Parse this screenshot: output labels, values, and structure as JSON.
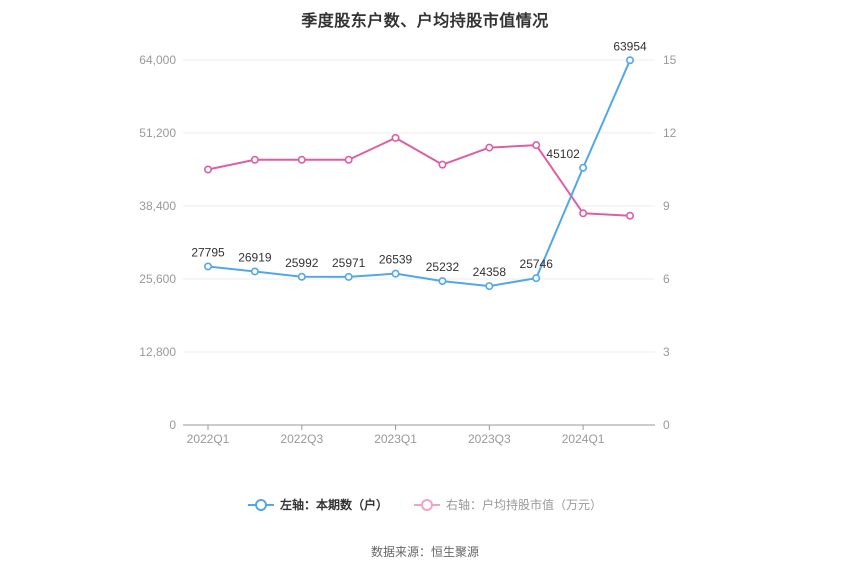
{
  "title": "季度股东户数、户均持股市值情况",
  "footer": {
    "source": "数据来源：恒生聚源"
  },
  "legend": {
    "items": [
      {
        "label": "左轴：本期数（户）",
        "color": "#53a7e8",
        "text_color": "#333333",
        "bold": true
      },
      {
        "label": "右轴：户均持股市值（万元）",
        "color": "#efa3c8",
        "text_color": "#999999",
        "bold": false
      }
    ]
  },
  "chart_data": {
    "type": "line",
    "title": "季度股东户数、户均持股市值情况",
    "categories": [
      "2022Q1",
      "2022Q2",
      "2022Q3",
      "2022Q4",
      "2023Q1",
      "2023Q2",
      "2023Q3",
      "2023Q4",
      "2024Q1",
      "2024Q2"
    ],
    "x_tick_labels": [
      "2022Q1",
      "2022Q3",
      "2023Q1",
      "2023Q3",
      "2024Q1"
    ],
    "x_label_every": 2,
    "grid": true,
    "legend_position": "bottom",
    "series": [
      {
        "name": "左轴：本期数（户）",
        "axis": "left",
        "color": "#53a7e8",
        "values": [
          27795,
          26919,
          25992,
          25971,
          26539,
          25232,
          24358,
          25746,
          45102,
          63954
        ],
        "data_labels": true
      },
      {
        "name": "右轴：户均持股市值（万元）",
        "axis": "right",
        "color": "#dd5fa3",
        "values": [
          10.5,
          10.9,
          10.9,
          10.9,
          11.8,
          10.7,
          11.4,
          11.5,
          8.7,
          8.6
        ],
        "data_labels": false
      }
    ],
    "left_axis": {
      "label": "本期数（户）",
      "min": 0,
      "max": 64000,
      "ticks": [
        0,
        12800,
        25600,
        38400,
        51200,
        64000
      ],
      "tick_labels": [
        "0",
        "12,800",
        "25,600",
        "38,400",
        "51,200",
        "64,000"
      ]
    },
    "right_axis": {
      "label": "户均持股市值（万元）",
      "min": 0,
      "max": 15,
      "ticks": [
        0,
        3,
        6,
        9,
        12,
        15
      ],
      "tick_labels": [
        "0",
        "3",
        "6",
        "9",
        "12",
        "15"
      ]
    }
  }
}
